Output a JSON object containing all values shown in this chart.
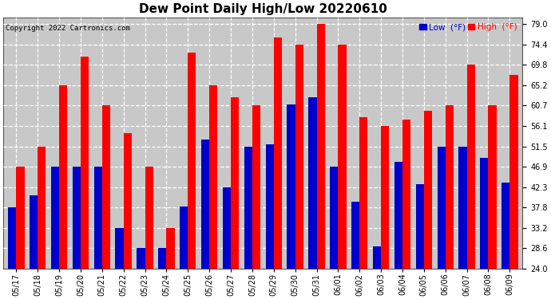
{
  "title": "Dew Point Daily High/Low 20220610",
  "copyright": "Copyright 2022 Cartronics.com",
  "legend_low": "Low  (°F)",
  "legend_high": "High  (°F)",
  "categories": [
    "05/17",
    "05/18",
    "05/19",
    "05/20",
    "05/21",
    "05/22",
    "05/23",
    "05/24",
    "05/25",
    "05/26",
    "05/27",
    "05/28",
    "05/29",
    "05/30",
    "05/31",
    "06/01",
    "06/02",
    "06/03",
    "06/04",
    "06/05",
    "06/06",
    "06/07",
    "06/08",
    "06/09"
  ],
  "high_values": [
    46.9,
    51.5,
    65.2,
    71.6,
    60.7,
    54.5,
    46.9,
    33.2,
    72.5,
    65.2,
    62.5,
    60.7,
    76.0,
    74.4,
    79.0,
    74.4,
    58.0,
    56.1,
    57.5,
    59.5,
    60.7,
    69.8,
    60.7,
    67.5
  ],
  "low_values": [
    37.8,
    40.5,
    47.0,
    47.0,
    47.0,
    33.2,
    28.6,
    28.6,
    38.0,
    53.0,
    42.3,
    51.5,
    52.0,
    61.0,
    62.5,
    46.9,
    39.0,
    29.0,
    48.0,
    43.0,
    51.5,
    51.5,
    49.0,
    43.3
  ],
  "bar_color_high": "#FF0000",
  "bar_color_low": "#0000CD",
  "background_color": "#FFFFFF",
  "plot_bg_color": "#C8C8C8",
  "ylim_min": 24.0,
  "ylim_max": 80.5,
  "ytick_vals": [
    24.0,
    28.6,
    33.2,
    37.8,
    42.3,
    46.9,
    51.5,
    56.1,
    60.7,
    65.2,
    69.8,
    74.4,
    79.0
  ],
  "grid_color": "#FFFFFF",
  "title_fontsize": 11,
  "tick_fontsize": 7,
  "copyright_fontsize": 6.5
}
